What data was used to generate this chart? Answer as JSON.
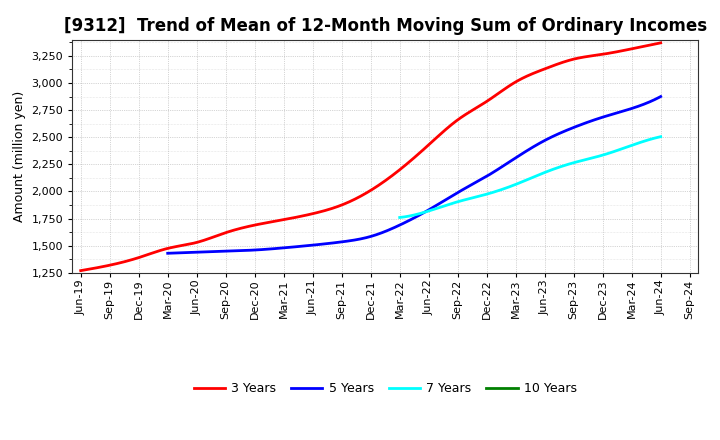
{
  "title": "[9312]  Trend of Mean of 12-Month Moving Sum of Ordinary Incomes",
  "ylabel": "Amount (million yen)",
  "background_color": "#ffffff",
  "grid_color": "#999999",
  "plot_bg_color": "#ffffff",
  "series": [
    {
      "name": "3 Years",
      "color": "#ff0000",
      "data": [
        [
          "Jun-19",
          1270
        ],
        [
          "Sep-19",
          1320
        ],
        [
          "Dec-19",
          1390
        ],
        [
          "Mar-20",
          1475
        ],
        [
          "Jun-20",
          1530
        ],
        [
          "Sep-20",
          1620
        ],
        [
          "Dec-20",
          1690
        ],
        [
          "Mar-21",
          1740
        ],
        [
          "Jun-21",
          1795
        ],
        [
          "Sep-21",
          1875
        ],
        [
          "Dec-21",
          2010
        ],
        [
          "Mar-22",
          2200
        ],
        [
          "Jun-22",
          2430
        ],
        [
          "Sep-22",
          2660
        ],
        [
          "Dec-22",
          2830
        ],
        [
          "Mar-23",
          3010
        ],
        [
          "Jun-23",
          3130
        ],
        [
          "Sep-23",
          3220
        ],
        [
          "Dec-23",
          3265
        ],
        [
          "Mar-24",
          3315
        ],
        [
          "Jun-24",
          3370
        ]
      ]
    },
    {
      "name": "5 Years",
      "color": "#0000ff",
      "data": [
        [
          "Mar-20",
          1430
        ],
        [
          "Jun-20",
          1440
        ],
        [
          "Sep-20",
          1450
        ],
        [
          "Dec-20",
          1460
        ],
        [
          "Mar-21",
          1480
        ],
        [
          "Jun-21",
          1505
        ],
        [
          "Sep-21",
          1535
        ],
        [
          "Dec-21",
          1585
        ],
        [
          "Mar-22",
          1690
        ],
        [
          "Jun-22",
          1830
        ],
        [
          "Sep-22",
          1990
        ],
        [
          "Dec-22",
          2140
        ],
        [
          "Mar-23",
          2310
        ],
        [
          "Jun-23",
          2470
        ],
        [
          "Sep-23",
          2590
        ],
        [
          "Dec-23",
          2685
        ],
        [
          "Mar-24",
          2765
        ],
        [
          "Jun-24",
          2875
        ]
      ]
    },
    {
      "name": "7 Years",
      "color": "#00ffff",
      "data": [
        [
          "Mar-22",
          1760
        ],
        [
          "Jun-22",
          1820
        ],
        [
          "Sep-22",
          1905
        ],
        [
          "Dec-22",
          1975
        ],
        [
          "Mar-23",
          2065
        ],
        [
          "Jun-23",
          2175
        ],
        [
          "Sep-23",
          2265
        ],
        [
          "Dec-23",
          2335
        ],
        [
          "Mar-24",
          2425
        ],
        [
          "Jun-24",
          2505
        ]
      ]
    },
    {
      "name": "10 Years",
      "color": "#008000",
      "data": []
    }
  ],
  "xtick_labels": [
    "Jun-19",
    "Sep-19",
    "Dec-19",
    "Mar-20",
    "Jun-20",
    "Sep-20",
    "Dec-20",
    "Mar-21",
    "Jun-21",
    "Sep-21",
    "Dec-21",
    "Mar-22",
    "Jun-22",
    "Sep-22",
    "Dec-22",
    "Mar-23",
    "Jun-23",
    "Sep-23",
    "Dec-23",
    "Mar-24",
    "Jun-24",
    "Sep-24"
  ],
  "ylim": [
    1250,
    3400
  ],
  "yticks": [
    1250,
    1500,
    1750,
    2000,
    2250,
    2500,
    2750,
    3000,
    3250
  ],
  "title_fontsize": 12,
  "axis_label_fontsize": 9,
  "tick_fontsize": 8,
  "legend_fontsize": 9,
  "line_width": 2.0
}
